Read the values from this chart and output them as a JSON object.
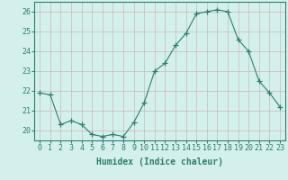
{
  "x": [
    0,
    1,
    2,
    3,
    4,
    5,
    6,
    7,
    8,
    9,
    10,
    11,
    12,
    13,
    14,
    15,
    16,
    17,
    18,
    19,
    20,
    21,
    22,
    23
  ],
  "y": [
    21.9,
    21.8,
    20.3,
    20.5,
    20.3,
    19.8,
    19.7,
    19.8,
    19.7,
    20.4,
    21.4,
    23.0,
    23.4,
    24.3,
    24.9,
    25.9,
    26.0,
    26.1,
    26.0,
    24.6,
    24.0,
    22.5,
    21.9,
    21.2
  ],
  "line_color": "#2e7d6e",
  "marker": "+",
  "marker_size": 4,
  "bg_color": "#d4f0ec",
  "grid_color": "#c8b8b8",
  "xlabel": "Humidex (Indice chaleur)",
  "ylim": [
    19.5,
    26.5
  ],
  "yticks": [
    20,
    21,
    22,
    23,
    24,
    25,
    26
  ],
  "xlim": [
    -0.5,
    23.5
  ],
  "label_fontsize": 7,
  "tick_fontsize": 6,
  "tick_color": "#2e7d6e",
  "spine_color": "#2e7d6e"
}
